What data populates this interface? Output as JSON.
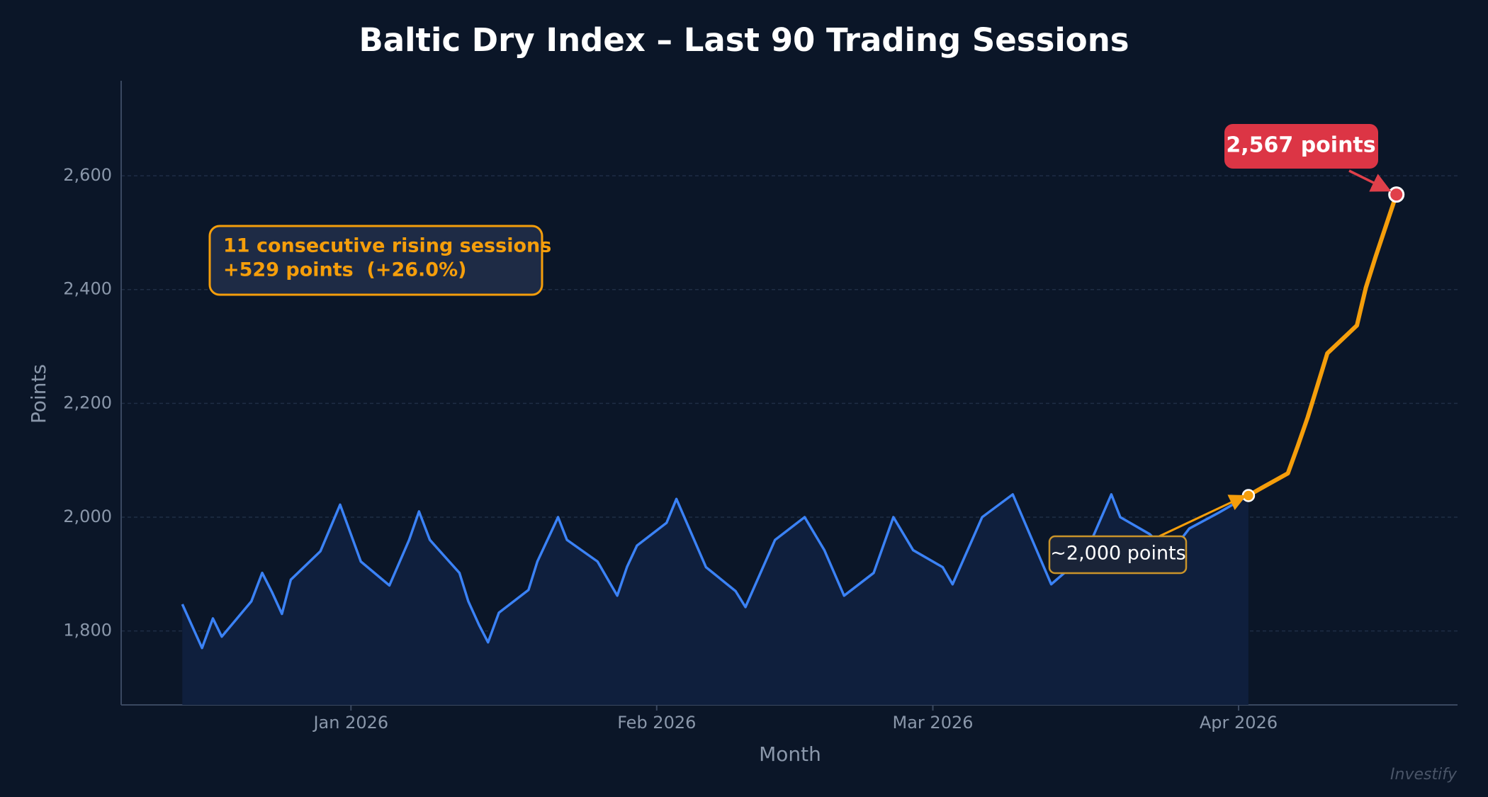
{
  "chart_data": {
    "type": "line",
    "title": "Baltic Dry Index – Last 90 Trading Sessions",
    "x_label": "Month",
    "y_label": "Points",
    "xlim": [
      -23.3,
      112.2
    ],
    "xticks": [
      {
        "value": 0,
        "label": "Jan 2026"
      },
      {
        "value": 31,
        "label": "Feb 2026"
      },
      {
        "value": 59,
        "label": "Mar 2026"
      },
      {
        "value": 90,
        "label": "Apr 2026"
      }
    ],
    "ylim": [
      1670,
      2767
    ],
    "yticks": [
      {
        "value": 1800,
        "label": "1,800"
      },
      {
        "value": 2000,
        "label": "2,000"
      },
      {
        "value": 2200,
        "label": "2,200"
      },
      {
        "value": 2400,
        "label": "2,400"
      },
      {
        "value": 2600,
        "label": "2,600"
      }
    ],
    "grid": true,
    "series": [
      {
        "color": "#3b82f6",
        "area_color": "#0f1f3d",
        "x": [
          -17.1,
          -15.1,
          -14,
          -13.1,
          -10.1,
          -9,
          -8,
          -7,
          -6.1,
          -3.1,
          -1.1,
          1,
          3.9,
          5.9,
          6.9,
          8,
          11,
          11.9,
          13,
          13.9,
          15,
          18,
          18.9,
          21,
          21.9,
          25,
          27,
          28,
          29,
          32,
          33,
          36,
          39,
          40,
          43,
          46,
          48,
          50,
          53,
          55,
          57,
          60,
          61,
          64,
          67.1,
          71,
          73,
          75.1,
          77.1,
          78,
          81,
          83,
          85,
          88,
          91
        ],
        "values": [
          1847,
          1770,
          1822,
          1790,
          1852,
          1902,
          1868,
          1830,
          1890,
          1940,
          2022,
          1922,
          1880,
          1960,
          2010,
          1960,
          1902,
          1852,
          1810,
          1780,
          1832,
          1872,
          1922,
          2000,
          1960,
          1922,
          1862,
          1913,
          1950,
          1990,
          2032,
          1912,
          1870,
          1842,
          1960,
          2000,
          1942,
          1862,
          1902,
          2000,
          1942,
          1912,
          1882,
          2000,
          2040,
          1882,
          1912,
          1960,
          2040,
          2000,
          1970,
          1935,
          1980,
          2008,
          2038
        ]
      },
      {
        "color": "#f59e0b",
        "x": [
          91,
          92,
          95,
          96,
          97,
          99,
          102,
          102.9,
          103.9,
          106
        ],
        "values": [
          2038,
          2048,
          2077,
          2125,
          2175,
          2288,
          2337,
          2403,
          2458,
          2567
        ]
      }
    ],
    "annotations": [
      "11 consecutive rising sessions",
      "+529 points  (+26.0%)",
      "~2,000 points",
      "2,567 points"
    ],
    "watermark": "Investify"
  }
}
